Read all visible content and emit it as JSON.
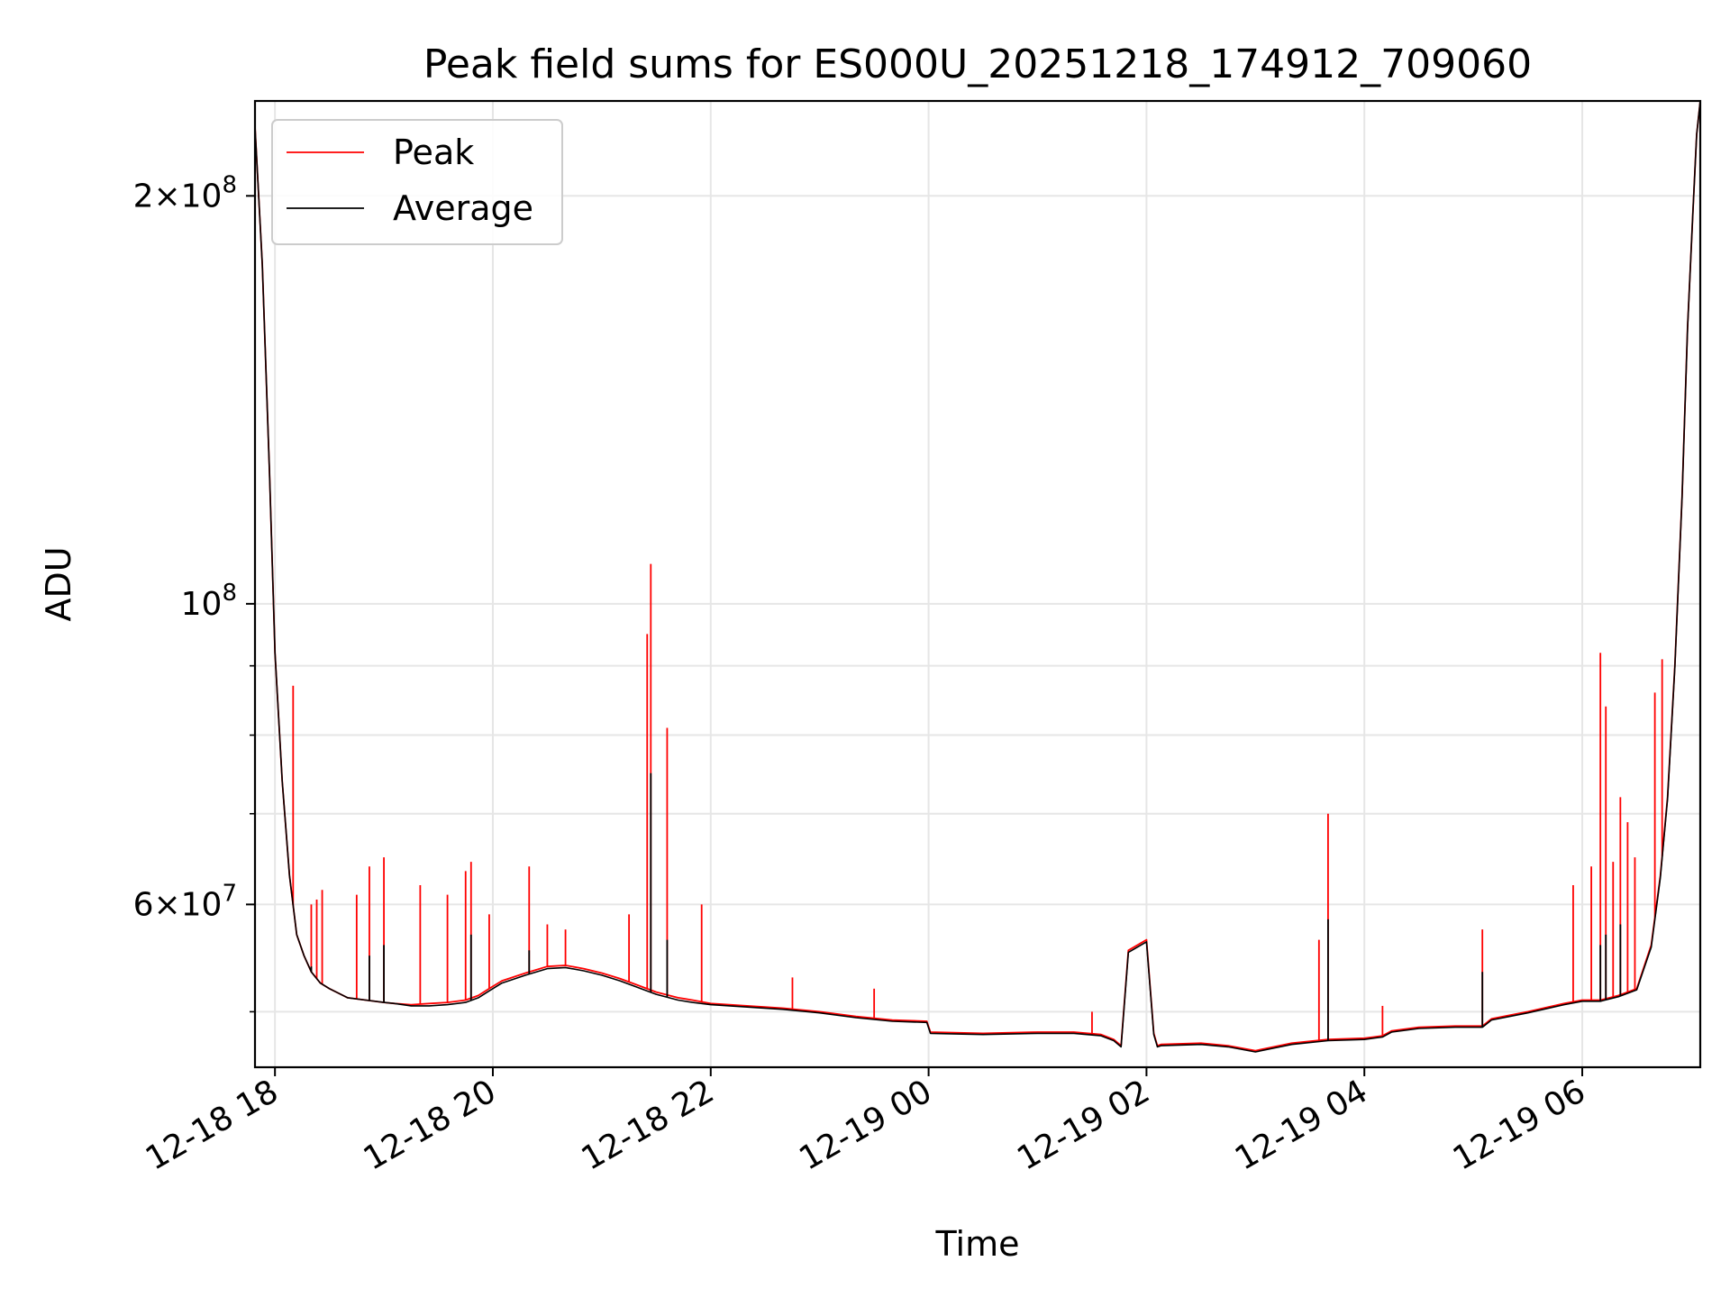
{
  "chart_data": {
    "type": "line",
    "title": "Peak field sums for ES000U_20251218_174912_709060",
    "xlabel": "Time",
    "ylabel": "ADU",
    "yscale": "log",
    "grid": true,
    "legend_position": "top-left",
    "xlim": [
      "2025-12-18 17:49",
      "2025-12-19 07:05"
    ],
    "ylim": [
      45500000,
      235000000
    ],
    "x_ticks": [
      {
        "label": "12-18 18",
        "value": "2025-12-18 18:00"
      },
      {
        "label": "12-18 20",
        "value": "2025-12-18 20:00"
      },
      {
        "label": "12-18 22",
        "value": "2025-12-18 22:00"
      },
      {
        "label": "12-19 00",
        "value": "2025-12-19 00:00"
      },
      {
        "label": "12-19 02",
        "value": "2025-12-19 02:00"
      },
      {
        "label": "12-19 04",
        "value": "2025-12-19 04:00"
      },
      {
        "label": "12-19 06",
        "value": "2025-12-19 06:00"
      }
    ],
    "y_major_ticks": [
      {
        "value": 200000000,
        "mantissa": "2",
        "exponent": "8"
      },
      {
        "value": 100000000,
        "mantissa": "",
        "exponent": "8"
      },
      {
        "value": 60000000,
        "mantissa": "6",
        "exponent": "7"
      }
    ],
    "y_minor_ticks": [
      50000000,
      70000000,
      80000000,
      90000000
    ],
    "series": [
      {
        "name": "Peak",
        "color": "#ff0000",
        "x": [
          "2025-12-18 17:49",
          "2025-12-18 17:53",
          "2025-12-18 17:57",
          "2025-12-18 18:00",
          "2025-12-18 18:04",
          "2025-12-18 18:08",
          "2025-12-18 18:12",
          "2025-12-18 18:16",
          "2025-12-18 18:20",
          "2025-12-18 18:25",
          "2025-12-18 18:30",
          "2025-12-18 18:40",
          "2025-12-18 18:50",
          "2025-12-18 19:00",
          "2025-12-18 19:06",
          "2025-12-18 19:15",
          "2025-12-18 19:25",
          "2025-12-18 19:35",
          "2025-12-18 19:45",
          "2025-12-18 19:52",
          "2025-12-18 19:58",
          "2025-12-18 20:05",
          "2025-12-18 20:18",
          "2025-12-18 20:30",
          "2025-12-18 20:40",
          "2025-12-18 20:50",
          "2025-12-18 21:00",
          "2025-12-18 21:10",
          "2025-12-18 21:20",
          "2025-12-18 21:30",
          "2025-12-18 21:42",
          "2025-12-18 21:50",
          "2025-12-18 22:00",
          "2025-12-18 22:20",
          "2025-12-18 22:40",
          "2025-12-18 23:00",
          "2025-12-18 23:20",
          "2025-12-18 23:40",
          "2025-12-18 23:59",
          "2025-12-19 00:01",
          "2025-12-19 00:30",
          "2025-12-19 01:00",
          "2025-12-19 01:20",
          "2025-12-19 01:35",
          "2025-12-19 01:42",
          "2025-12-19 01:46",
          "2025-12-19 01:50",
          "2025-12-19 02:00",
          "2025-12-19 02:04",
          "2025-12-19 02:06",
          "2025-12-19 02:08",
          "2025-12-19 02:30",
          "2025-12-19 02:45",
          "2025-12-19 03:00",
          "2025-12-19 03:20",
          "2025-12-19 03:40",
          "2025-12-19 04:00",
          "2025-12-19 04:10",
          "2025-12-19 04:15",
          "2025-12-19 04:30",
          "2025-12-19 04:50",
          "2025-12-19 05:05",
          "2025-12-19 05:10",
          "2025-12-19 05:30",
          "2025-12-19 05:50",
          "2025-12-19 06:00",
          "2025-12-19 06:10",
          "2025-12-19 06:20",
          "2025-12-19 06:30",
          "2025-12-19 06:38",
          "2025-12-19 06:43",
          "2025-12-19 06:47",
          "2025-12-19 06:51",
          "2025-12-19 06:55",
          "2025-12-19 06:58",
          "2025-12-19 07:01",
          "2025-12-19 07:03",
          "2025-12-19 07:05"
        ],
        "values": [
          225000000,
          178000000,
          125000000,
          92000000,
          74000000,
          63000000,
          57000000,
          55000000,
          53500000,
          52500000,
          52000000,
          51200000,
          51000000,
          50800000,
          50700000,
          50600000,
          50700000,
          50800000,
          51000000,
          51400000,
          52000000,
          52700000,
          53400000,
          54000000,
          54100000,
          53800000,
          53400000,
          52900000,
          52300000,
          51700000,
          51200000,
          51000000,
          50700000,
          50500000,
          50300000,
          50000000,
          49600000,
          49300000,
          49200000,
          48300000,
          48200000,
          48300000,
          48300000,
          48100000,
          47700000,
          47200000,
          55500000,
          56500000,
          48200000,
          47200000,
          47300000,
          47400000,
          47200000,
          46800000,
          47400000,
          47700000,
          47800000,
          48000000,
          48400000,
          48700000,
          48800000,
          48800000,
          49400000,
          50000000,
          50700000,
          51000000,
          51000000,
          51400000,
          52000000,
          56000000,
          63000000,
          72000000,
          90000000,
          120000000,
          160000000,
          195000000,
          222000000,
          235000000
        ]
      },
      {
        "name": "Average",
        "color": "#000000",
        "x": [
          "2025-12-18 17:49",
          "2025-12-18 17:53",
          "2025-12-18 17:57",
          "2025-12-18 18:00",
          "2025-12-18 18:04",
          "2025-12-18 18:08",
          "2025-12-18 18:12",
          "2025-12-18 18:16",
          "2025-12-18 18:20",
          "2025-12-18 18:25",
          "2025-12-18 18:30",
          "2025-12-18 18:40",
          "2025-12-18 18:50",
          "2025-12-18 19:00",
          "2025-12-18 19:06",
          "2025-12-18 19:15",
          "2025-12-18 19:25",
          "2025-12-18 19:35",
          "2025-12-18 19:45",
          "2025-12-18 19:52",
          "2025-12-18 19:58",
          "2025-12-18 20:05",
          "2025-12-18 20:18",
          "2025-12-18 20:30",
          "2025-12-18 20:40",
          "2025-12-18 20:50",
          "2025-12-18 21:00",
          "2025-12-18 21:10",
          "2025-12-18 21:20",
          "2025-12-18 21:30",
          "2025-12-18 21:42",
          "2025-12-18 21:50",
          "2025-12-18 22:00",
          "2025-12-18 22:20",
          "2025-12-18 22:40",
          "2025-12-18 23:00",
          "2025-12-18 23:20",
          "2025-12-18 23:40",
          "2025-12-18 23:59",
          "2025-12-19 00:01",
          "2025-12-19 00:30",
          "2025-12-19 01:00",
          "2025-12-19 01:20",
          "2025-12-19 01:35",
          "2025-12-19 01:42",
          "2025-12-19 01:46",
          "2025-12-19 01:50",
          "2025-12-19 02:00",
          "2025-12-19 02:04",
          "2025-12-19 02:06",
          "2025-12-19 02:08",
          "2025-12-19 02:30",
          "2025-12-19 02:45",
          "2025-12-19 03:00",
          "2025-12-19 03:20",
          "2025-12-19 03:40",
          "2025-12-19 04:00",
          "2025-12-19 04:10",
          "2025-12-19 04:15",
          "2025-12-19 04:30",
          "2025-12-19 04:50",
          "2025-12-19 05:05",
          "2025-12-19 05:10",
          "2025-12-19 05:30",
          "2025-12-19 05:50",
          "2025-12-19 06:00",
          "2025-12-19 06:10",
          "2025-12-19 06:20",
          "2025-12-19 06:30",
          "2025-12-19 06:38",
          "2025-12-19 06:43",
          "2025-12-19 06:47",
          "2025-12-19 06:51",
          "2025-12-19 06:55",
          "2025-12-19 06:58",
          "2025-12-19 07:01",
          "2025-12-19 07:03",
          "2025-12-19 07:05"
        ],
        "values": [
          225000000,
          178000000,
          125000000,
          92000000,
          74000000,
          63000000,
          57000000,
          55000000,
          53500000,
          52500000,
          52000000,
          51200000,
          51000000,
          50800000,
          50700000,
          50500000,
          50500000,
          50600000,
          50800000,
          51200000,
          51800000,
          52500000,
          53200000,
          53800000,
          53900000,
          53600000,
          53200000,
          52700000,
          52100000,
          51500000,
          51000000,
          50800000,
          50600000,
          50400000,
          50200000,
          49900000,
          49500000,
          49200000,
          49100000,
          48200000,
          48100000,
          48200000,
          48200000,
          48000000,
          47600000,
          47100000,
          55300000,
          56300000,
          48100000,
          47100000,
          47200000,
          47300000,
          47100000,
          46700000,
          47300000,
          47600000,
          47700000,
          47900000,
          48300000,
          48600000,
          48700000,
          48700000,
          49300000,
          49900000,
          50600000,
          50900000,
          50900000,
          51300000,
          51900000,
          55800000,
          62800000,
          71800000,
          89800000,
          119800000,
          159800000,
          195000000,
          222000000,
          235000000
        ]
      }
    ],
    "peak_spikes": {
      "x": [
        "2025-12-18 18:10",
        "2025-12-18 18:20",
        "2025-12-18 18:23",
        "2025-12-18 18:26",
        "2025-12-18 18:45",
        "2025-12-18 18:52",
        "2025-12-18 19:00",
        "2025-12-18 19:20",
        "2025-12-18 19:35",
        "2025-12-18 19:45",
        "2025-12-18 19:48",
        "2025-12-18 19:58",
        "2025-12-18 20:20",
        "2025-12-18 20:30",
        "2025-12-18 20:40",
        "2025-12-18 21:15",
        "2025-12-18 21:25",
        "2025-12-18 21:27",
        "2025-12-18 21:36",
        "2025-12-18 21:55",
        "2025-12-18 22:45",
        "2025-12-18 23:30",
        "2025-12-19 01:30",
        "2025-12-19 03:35",
        "2025-12-19 03:40",
        "2025-12-19 04:10",
        "2025-12-19 05:05",
        "2025-12-19 05:55",
        "2025-12-19 06:05",
        "2025-12-19 06:10",
        "2025-12-19 06:13",
        "2025-12-19 06:17",
        "2025-12-19 06:21",
        "2025-12-19 06:25",
        "2025-12-19 06:29",
        "2025-12-19 06:40",
        "2025-12-19 06:44"
      ],
      "values": [
        87000000,
        60000000,
        60500000,
        61500000,
        61000000,
        64000000,
        65000000,
        62000000,
        61000000,
        63500000,
        64500000,
        59000000,
        64000000,
        58000000,
        57500000,
        59000000,
        95000000,
        107000000,
        81000000,
        60000000,
        53000000,
        52000000,
        50000000,
        56500000,
        70000000,
        50500000,
        57500000,
        62000000,
        64000000,
        92000000,
        84000000,
        64500000,
        72000000,
        69000000,
        65000000,
        86000000,
        91000000
      ]
    },
    "average_spikes": {
      "x": [
        "2025-12-18 18:20",
        "2025-12-18 18:52",
        "2025-12-18 19:00",
        "2025-12-18 19:48",
        "2025-12-18 20:20",
        "2025-12-18 21:27",
        "2025-12-18 21:36",
        "2025-12-19 03:40",
        "2025-12-19 05:05",
        "2025-12-19 06:10",
        "2025-12-19 06:13",
        "2025-12-19 06:21"
      ],
      "values": [
        54000000,
        55000000,
        56000000,
        57000000,
        55500000,
        75000000,
        56500000,
        58500000,
        53500000,
        56000000,
        57000000,
        58000000
      ]
    }
  }
}
